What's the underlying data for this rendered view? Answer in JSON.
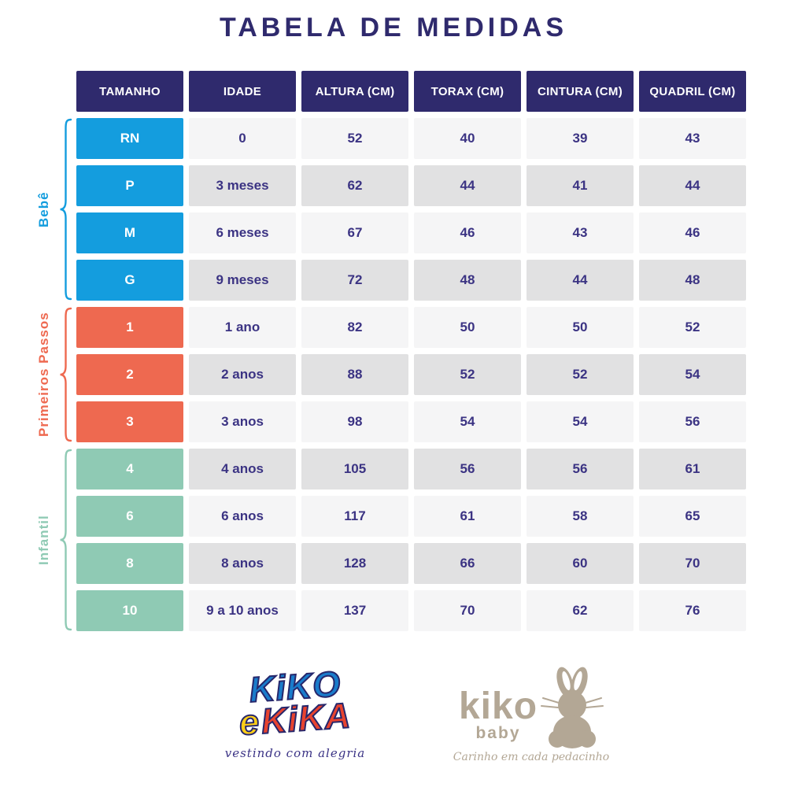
{
  "title": "TABELA DE MEDIDAS",
  "colors": {
    "header_bg": "#2f2a6d",
    "cell_text_navy": "#3b3383",
    "row_light": "#f5f5f6",
    "row_dark": "#e1e1e2",
    "baby_blue": "#149dde",
    "first_steps_coral": "#ee6950",
    "kids_mint": "#8fcab4",
    "brand_beige": "#b3a795"
  },
  "chart_data": {
    "type": "table",
    "title": "TABELA DE MEDIDAS",
    "columns": [
      "TAMANHO",
      "IDADE",
      "ALTURA (CM)",
      "TORAX (CM)",
      "CINTURA (CM)",
      "QUADRIL (CM)"
    ],
    "groups": [
      {
        "label": "Bebê",
        "color": "#149dde",
        "rows": [
          [
            "RN",
            "0",
            "52",
            "40",
            "39",
            "43"
          ],
          [
            "P",
            "3 meses",
            "62",
            "44",
            "41",
            "44"
          ],
          [
            "M",
            "6 meses",
            "67",
            "46",
            "43",
            "46"
          ],
          [
            "G",
            "9 meses",
            "72",
            "48",
            "44",
            "48"
          ]
        ]
      },
      {
        "label": "Primeiros Passos",
        "color": "#ee6950",
        "rows": [
          [
            "1",
            "1 ano",
            "82",
            "50",
            "50",
            "52"
          ],
          [
            "2",
            "2 anos",
            "88",
            "52",
            "52",
            "54"
          ],
          [
            "3",
            "3 anos",
            "98",
            "54",
            "54",
            "56"
          ]
        ]
      },
      {
        "label": "Infantil",
        "color": "#8fcab4",
        "rows": [
          [
            "4",
            "4 anos",
            "105",
            "56",
            "56",
            "61"
          ],
          [
            "6",
            "6 anos",
            "117",
            "61",
            "58",
            "65"
          ],
          [
            "8",
            "8 anos",
            "128",
            "66",
            "60",
            "70"
          ],
          [
            "10",
            "9 a 10 anos",
            "137",
            "70",
            "62",
            "76"
          ]
        ]
      }
    ]
  },
  "logos": {
    "kiko_e_kika": {
      "line1": "KiKO",
      "line2_e": "e",
      "line2_kika": "KiKA",
      "tagline": "vestindo com alegria"
    },
    "kiko_baby": {
      "name": "kiko",
      "sub": "baby",
      "tagline": "Carinho em cada pedacinho"
    }
  }
}
